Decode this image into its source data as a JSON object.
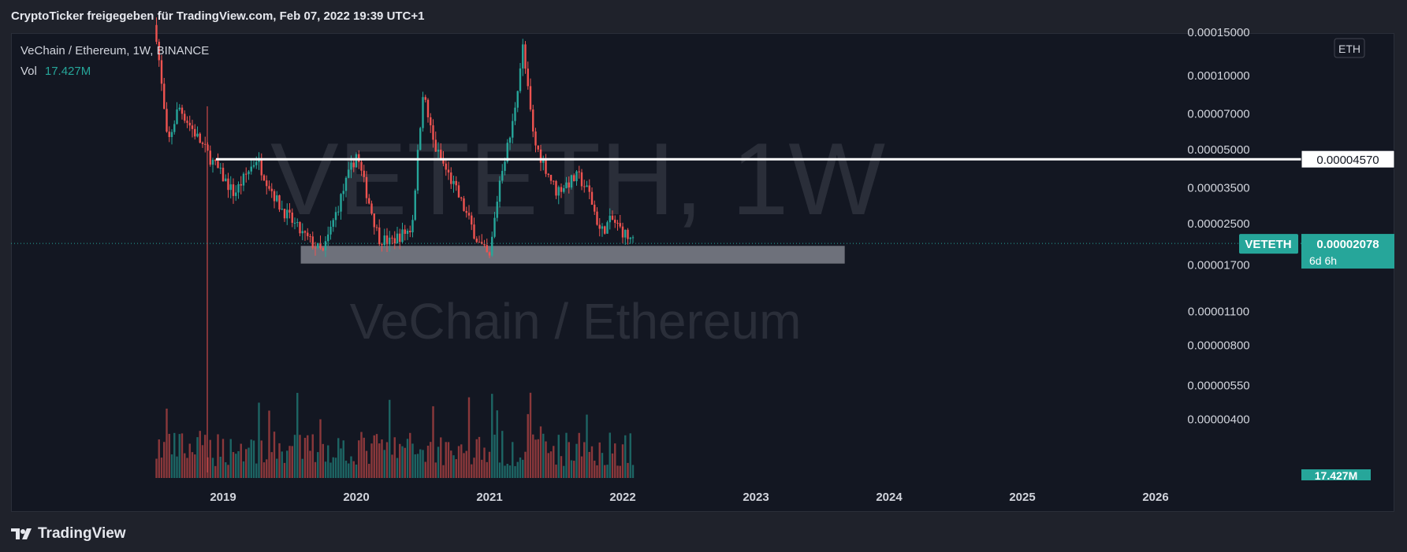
{
  "header": {
    "caption": "CryptoTicker freigegeben für TradingView.com, Feb 07, 2022 19:39 UTC+1"
  },
  "legend": {
    "symbol_line": "VeChain / Ethereum, 1W, BINANCE",
    "vol_label": "Vol",
    "vol_value": "17.427M"
  },
  "watermark": {
    "symbol": "VETETH, 1W",
    "name": "VeChain / Ethereum"
  },
  "currency_badge": "ETH",
  "horizontal_line_label": "0.00004570",
  "last_price": {
    "symbol": "VETETH",
    "price": "0.00002078",
    "countdown": "6d 6h"
  },
  "volume_badge": "17.427M",
  "footer": {
    "brand": "TradingView"
  },
  "colors": {
    "up": "#26a69a",
    "down": "#ef5350",
    "background": "#131722",
    "zone": "#9598a1"
  },
  "chart_data": {
    "type": "candlestick",
    "title": "VeChain / Ethereum, 1W, BINANCE",
    "y_scale": "log",
    "y_ticks": [
      "0.00015000",
      "0.00010000",
      "0.00007000",
      "0.00005000",
      "0.00003500",
      "0.00002500",
      "0.00001700",
      "0.00001100",
      "0.00000800",
      "0.00000550",
      "0.00000400"
    ],
    "x_ticks": [
      "2019",
      "2020",
      "2021",
      "2022",
      "2023",
      "2024",
      "2025",
      "2026"
    ],
    "horizontal_line": 4.57e-05,
    "support_zone": {
      "from": "2019-08",
      "to": "2023-09",
      "low": 1.72e-05,
      "high": 2.03e-05
    },
    "last": 2.078e-05,
    "close_path": [
      [
        "2018-07",
        0.000146
      ],
      [
        "2018-08",
        5.2e-05
      ],
      [
        "2018-09",
        7.5e-05
      ],
      [
        "2018-10",
        6.3e-05
      ],
      [
        "2018-12",
        4.5e-05
      ],
      [
        "2019-02",
        3.3e-05
      ],
      [
        "2019-04",
        4.6e-05
      ],
      [
        "2019-06",
        3e-05
      ],
      [
        "2019-08",
        2.3e-05
      ],
      [
        "2019-10",
        1.9e-05
      ],
      [
        "2019-12",
        3.6e-05
      ],
      [
        "2020-01",
        4.8e-05
      ],
      [
        "2020-03",
        2.2e-05
      ],
      [
        "2020-04",
        2.1e-05
      ],
      [
        "2020-06",
        2.4e-05
      ],
      [
        "2020-07",
        8.6e-05
      ],
      [
        "2020-08",
        5.2e-05
      ],
      [
        "2020-10",
        3.4e-05
      ],
      [
        "2020-12",
        2.1e-05
      ],
      [
        "2021-01",
        1.8e-05
      ],
      [
        "2021-02",
        4e-05
      ],
      [
        "2021-03",
        6e-05
      ],
      [
        "2021-04",
        0.00013
      ],
      [
        "2021-05",
        5.4e-05
      ],
      [
        "2021-07",
        3.4e-05
      ],
      [
        "2021-09",
        3.9e-05
      ],
      [
        "2021-10",
        3.3e-05
      ],
      [
        "2021-11",
        2.3e-05
      ],
      [
        "2021-12",
        2.6e-05
      ],
      [
        "2022-02",
        2.078e-05
      ]
    ]
  }
}
